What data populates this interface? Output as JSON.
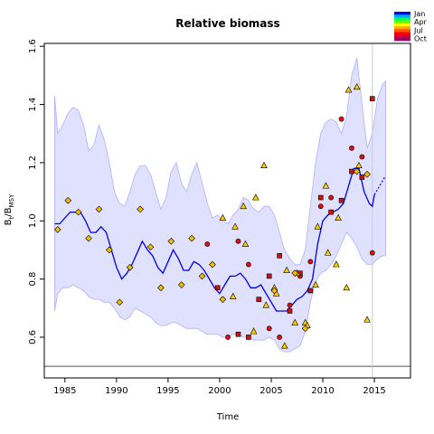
{
  "chart_data": {
    "type": "scatter",
    "title": "Relative biomass",
    "xlabel": "Time",
    "ylabel_main": "B",
    "ylabel_sub1": "t",
    "ylabel_mid": "/B",
    "ylabel_sub2": "MSY",
    "xlim": [
      1983.0,
      2018.5
    ],
    "ylim": [
      0.46,
      1.61
    ],
    "xticks": [
      1985,
      1990,
      1995,
      2000,
      2005,
      2010,
      2015
    ],
    "yticks": [
      0.6,
      0.8,
      1.0,
      1.2,
      1.4,
      1.6
    ],
    "yticks_labels": [
      "0.6",
      "0.8",
      "1.0",
      "1.2",
      "1.4",
      "1.6"
    ],
    "reference_hline": 0.5,
    "reference_vline": 2014.8,
    "legend": {
      "position": "top-right",
      "labels": [
        "Jan",
        "Apr",
        "Jul",
        "Oct"
      ],
      "colors": [
        "#0000ff",
        "#00aaff",
        "#00ff66",
        "#66ff00",
        "#ffff00",
        "#ffaa00",
        "#ff5500",
        "#ff0000",
        "#cc0033",
        "#990066"
      ]
    },
    "colors": {
      "band_fill": "#e0e0ff",
      "band_edge": "#b0b0ff",
      "median_line": "#0000ee",
      "circle_fill": "#dd1111",
      "square_fill": "#cc1111",
      "triangle_fill": "#ffcc00",
      "diamond_fill": "#f0c000",
      "vline": "#cccccc",
      "hline": "#555555"
    },
    "band": {
      "x": [
        1984.0,
        1984.3,
        1984.8,
        1985.3,
        1985.8,
        1986.3,
        1986.8,
        1987.3,
        1987.8,
        1988.3,
        1988.8,
        1989.3,
        1989.8,
        1990.3,
        1990.8,
        1991.3,
        1991.8,
        1992.3,
        1992.8,
        1993.3,
        1993.8,
        1994.3,
        1994.8,
        1995.3,
        1995.8,
        1996.3,
        1996.8,
        1997.3,
        1997.8,
        1998.3,
        1998.8,
        1999.3,
        1999.8,
        2000.3,
        2000.8,
        2001.3,
        2001.8,
        2002.3,
        2002.8,
        2003.3,
        2003.8,
        2004.3,
        2004.8,
        2005.3,
        2005.8,
        2006.3,
        2006.8,
        2007.3,
        2007.8,
        2008.3,
        2008.8,
        2009.3,
        2009.8,
        2010.3,
        2010.8,
        2011.3,
        2011.8,
        2012.3,
        2012.8,
        2013.3,
        2013.8,
        2014.3,
        2014.8,
        2015.3,
        2015.8,
        2016.1
      ],
      "upper": [
        1.43,
        1.3,
        1.33,
        1.37,
        1.39,
        1.38,
        1.33,
        1.24,
        1.26,
        1.33,
        1.28,
        1.2,
        1.1,
        1.06,
        1.05,
        1.1,
        1.16,
        1.19,
        1.19,
        1.16,
        1.1,
        1.04,
        1.08,
        1.17,
        1.2,
        1.13,
        1.1,
        1.16,
        1.2,
        1.13,
        1.06,
        1.01,
        1.02,
        1.0,
        0.99,
        1.02,
        1.04,
        1.08,
        1.07,
        1.04,
        1.03,
        1.05,
        1.05,
        1.02,
        0.96,
        0.9,
        0.87,
        0.85,
        0.85,
        0.9,
        1.05,
        1.2,
        1.3,
        1.34,
        1.35,
        1.34,
        1.3,
        1.36,
        1.5,
        1.56,
        1.4,
        1.25,
        1.3,
        1.42,
        1.47,
        1.48
      ],
      "lower": [
        0.69,
        0.75,
        0.77,
        0.77,
        0.78,
        0.77,
        0.76,
        0.74,
        0.73,
        0.73,
        0.72,
        0.72,
        0.7,
        0.67,
        0.66,
        0.67,
        0.7,
        0.69,
        0.68,
        0.67,
        0.65,
        0.64,
        0.64,
        0.65,
        0.65,
        0.64,
        0.63,
        0.63,
        0.63,
        0.62,
        0.61,
        0.61,
        0.61,
        0.6,
        0.6,
        0.61,
        0.61,
        0.6,
        0.6,
        0.59,
        0.59,
        0.59,
        0.6,
        0.59,
        0.56,
        0.55,
        0.55,
        0.56,
        0.57,
        0.62,
        0.72,
        0.79,
        0.82,
        0.83,
        0.85,
        0.88,
        0.92,
        0.96,
        0.94,
        0.91,
        0.87,
        0.85,
        0.85,
        0.87,
        0.88,
        0.88
      ]
    },
    "median": {
      "x": [
        1984.0,
        1984.5,
        1985.0,
        1985.5,
        1986.0,
        1986.5,
        1987.0,
        1987.5,
        1988.0,
        1988.5,
        1989.0,
        1989.5,
        1990.0,
        1990.5,
        1991.0,
        1991.5,
        1992.0,
        1992.5,
        1993.0,
        1993.5,
        1994.0,
        1994.5,
        1995.0,
        1995.5,
        1996.0,
        1996.5,
        1997.0,
        1997.5,
        1998.0,
        1998.5,
        1999.0,
        1999.5,
        2000.0,
        2000.5,
        2001.0,
        2001.5,
        2002.0,
        2002.5,
        2003.0,
        2003.5,
        2004.0,
        2004.5,
        2005.0,
        2005.5,
        2006.0,
        2006.5,
        2007.0,
        2007.5,
        2008.0,
        2008.5,
        2009.0,
        2009.5,
        2010.0,
        2010.5,
        2011.0,
        2011.5,
        2012.0,
        2012.5,
        2013.0,
        2013.5,
        2014.0,
        2014.5,
        2014.8,
        2015.0
      ],
      "y": [
        0.99,
        0.99,
        1.01,
        1.03,
        1.03,
        1.03,
        1.0,
        0.96,
        0.96,
        0.98,
        0.96,
        0.9,
        0.84,
        0.8,
        0.82,
        0.85,
        0.89,
        0.93,
        0.9,
        0.88,
        0.84,
        0.82,
        0.86,
        0.9,
        0.87,
        0.83,
        0.83,
        0.86,
        0.85,
        0.83,
        0.8,
        0.77,
        0.75,
        0.78,
        0.81,
        0.81,
        0.82,
        0.8,
        0.77,
        0.77,
        0.78,
        0.75,
        0.72,
        0.69,
        0.69,
        0.69,
        0.71,
        0.73,
        0.74,
        0.76,
        0.8,
        0.92,
        1.0,
        1.02,
        1.03,
        1.04,
        1.06,
        1.12,
        1.18,
        1.18,
        1.1,
        1.06,
        1.05,
        1.09
      ]
    },
    "projection": {
      "x": [
        2015.0,
        2015.5,
        2016.0
      ],
      "y": [
        1.09,
        1.12,
        1.15
      ]
    },
    "series": [
      {
        "marker": "circle",
        "x": [
          1998.8,
          2000.8,
          2001.8,
          2002.8,
          2003.8,
          2004.8,
          2005.8,
          2006.8,
          2007.8,
          2008.8,
          2009.8,
          2010.8,
          2011.8,
          2012.8,
          2013.8,
          2014.8
        ],
        "y": [
          0.92,
          0.6,
          0.93,
          0.85,
          0.73,
          0.63,
          0.6,
          0.71,
          0.81,
          0.86,
          1.05,
          1.08,
          1.35,
          1.25,
          1.22,
          0.89
        ]
      },
      {
        "marker": "square",
        "x": [
          1999.8,
          2001.8,
          2002.8,
          2003.8,
          2004.8,
          2005.8,
          2006.8,
          2007.8,
          2008.8,
          2009.8,
          2010.8,
          2011.8,
          2012.8,
          2013.8,
          2014.8
        ],
        "y": [
          0.77,
          0.61,
          0.6,
          0.73,
          0.81,
          0.88,
          0.69,
          0.82,
          0.76,
          1.08,
          1.03,
          1.07,
          1.17,
          1.15,
          1.42
        ]
      },
      {
        "marker": "triangle",
        "x": [
          2000.3,
          2001.3,
          2002.3,
          2003.3,
          2004.3,
          2005.3,
          2006.3,
          2007.3,
          2008.3,
          2009.3,
          2010.3,
          2011.3,
          2012.3,
          2013.3,
          2014.3
        ],
        "y": [
          1.01,
          0.74,
          1.05,
          0.62,
          1.19,
          0.77,
          0.57,
          0.65,
          0.65,
          0.78,
          1.12,
          0.85,
          0.77,
          1.46,
          0.66
        ]
      },
      {
        "marker": "triangle",
        "x": [
          2001.5,
          2002.5,
          2003.5,
          2004.5,
          2005.5,
          2006.5,
          2007.5,
          2008.5,
          2009.5,
          2010.5,
          2011.5,
          2012.5,
          2013.5
        ],
        "y": [
          0.98,
          0.92,
          1.08,
          0.71,
          0.75,
          0.83,
          0.82,
          0.64,
          0.98,
          0.89,
          1.01,
          1.45,
          1.19
        ]
      },
      {
        "marker": "diamond",
        "x": [
          1984.3,
          1985.3,
          1986.3,
          1987.3,
          1988.3,
          1989.3,
          1990.3,
          1991.3,
          1992.3,
          1993.3,
          1994.3,
          1995.3,
          1996.3,
          1997.3,
          1998.3,
          1999.3,
          2000.3,
          2005.3,
          2007.3,
          2008.3,
          2013.3,
          2014.3
        ],
        "y": [
          0.97,
          1.07,
          1.03,
          0.94,
          1.04,
          0.9,
          0.72,
          0.84,
          1.04,
          0.91,
          0.77,
          0.93,
          0.78,
          0.94,
          0.81,
          0.85,
          0.73,
          0.76,
          0.82,
          0.63,
          1.17,
          1.16
        ]
      }
    ]
  }
}
